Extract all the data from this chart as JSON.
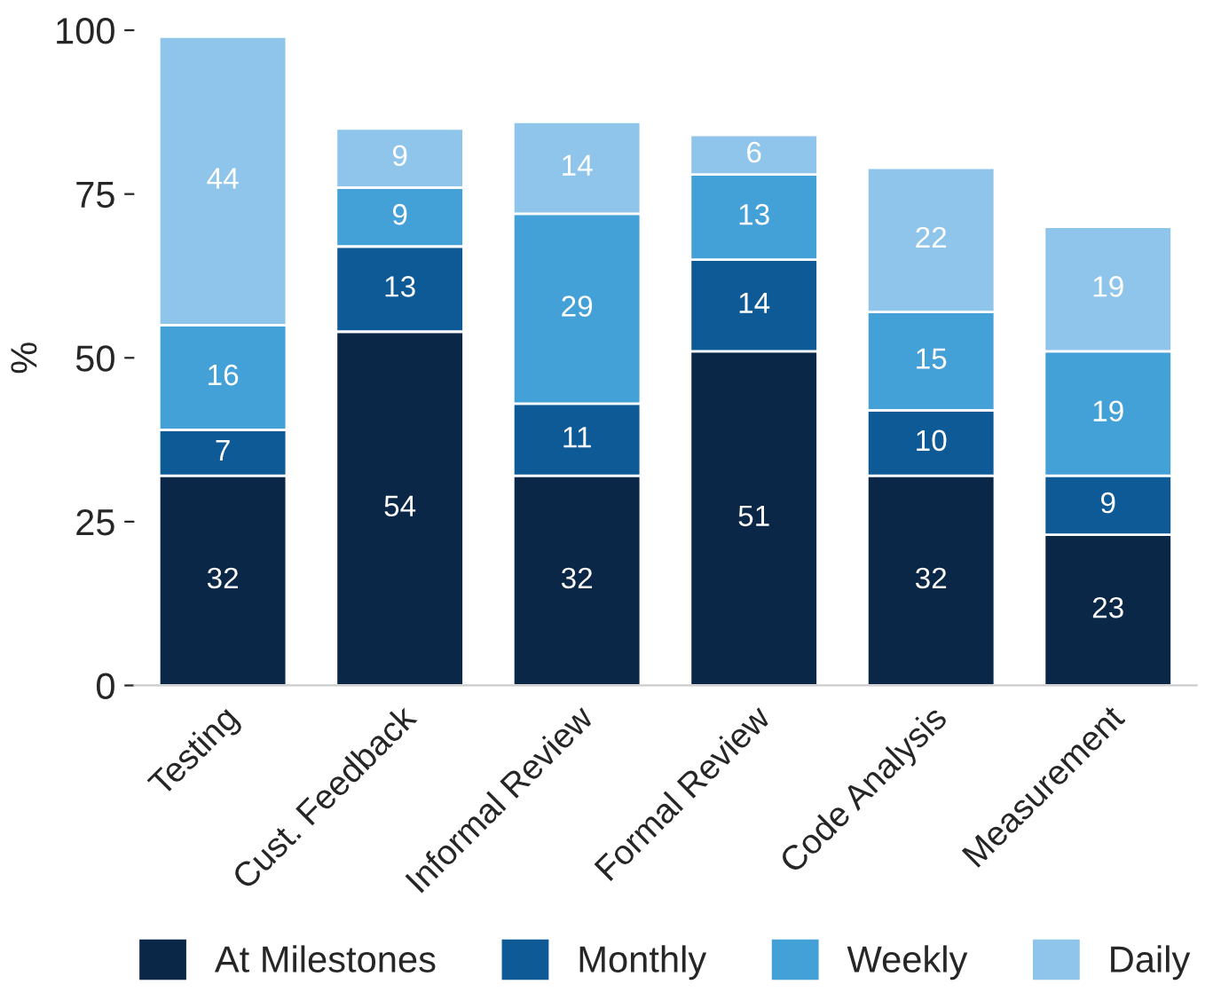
{
  "chart_data": {
    "type": "bar",
    "stacked": true,
    "ylabel": "%",
    "categories": [
      "Testing",
      "Cust. Feedback",
      "Informal Review",
      "Formal Review",
      "Code Analysis",
      "Measurement"
    ],
    "series": [
      {
        "name": "At Milestones",
        "color": "#0b2748",
        "values": [
          32,
          54,
          32,
          51,
          32,
          23
        ]
      },
      {
        "name": "Monthly",
        "color": "#0e5a97",
        "values": [
          7,
          13,
          11,
          14,
          10,
          9
        ]
      },
      {
        "name": "Weekly",
        "color": "#44a1d7",
        "values": [
          16,
          9,
          29,
          13,
          15,
          19
        ]
      },
      {
        "name": "Daily",
        "color": "#8fc5ea",
        "values": [
          44,
          9,
          14,
          6,
          22,
          19
        ]
      }
    ],
    "ylim": [
      0,
      100
    ],
    "yticks": [
      0,
      25,
      50,
      75,
      100
    ],
    "data_labels": true,
    "grid": false,
    "legend": "bottom"
  }
}
